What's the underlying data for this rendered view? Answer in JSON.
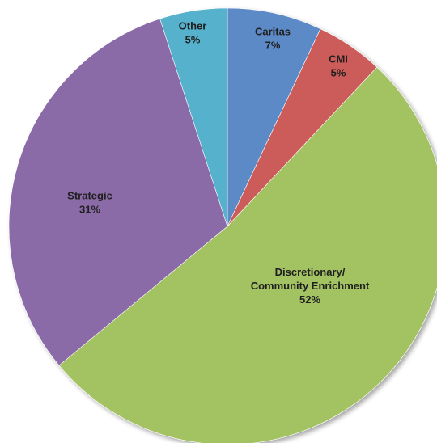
{
  "chart_data": {
    "type": "pie",
    "title": "",
    "start_angle_deg": 0,
    "direction": "clockwise",
    "slices": [
      {
        "key": "caritas",
        "label_lines": [
          "Caritas"
        ],
        "pct_label": "7%",
        "value": 7,
        "color": "#5b8ac6"
      },
      {
        "key": "cmi",
        "label_lines": [
          "CMI"
        ],
        "pct_label": "5%",
        "value": 5,
        "color": "#cc5c5a"
      },
      {
        "key": "discretionary",
        "label_lines": [
          "Discretionary/",
          "Community Enrichment"
        ],
        "pct_label": "52%",
        "value": 52,
        "color": "#a3c262"
      },
      {
        "key": "strategic",
        "label_lines": [
          "Strategic"
        ],
        "pct_label": "31%",
        "value": 31,
        "color": "#8a6ba7"
      },
      {
        "key": "other",
        "label_lines": [
          "Other"
        ],
        "pct_label": "5%",
        "value": 5,
        "color": "#54b1cc"
      }
    ]
  }
}
